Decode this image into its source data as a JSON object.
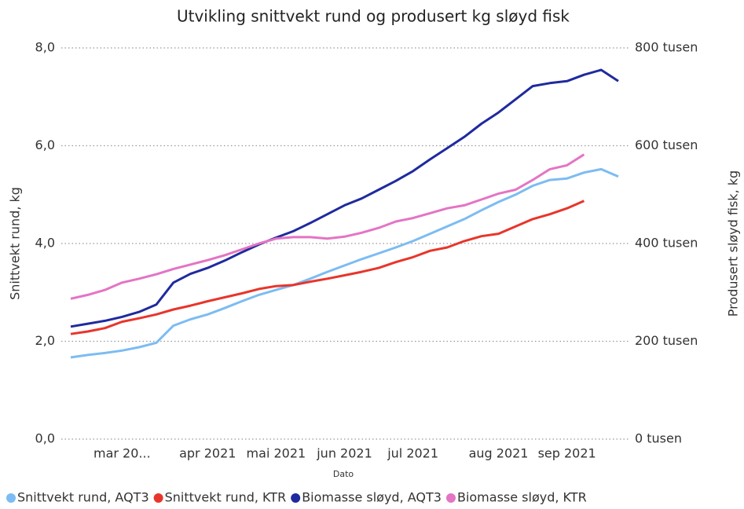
{
  "chart_data": {
    "type": "line",
    "title": "Utvikling snittvekt rund og produsert kg sløyd fisk",
    "x_label": "Dato",
    "y_label": "Snittvekt rund, kg",
    "y2_label": "Produsert sløyd fisk, kg",
    "categories": [
      null,
      null,
      null,
      "mar 20...",
      null,
      null,
      null,
      null,
      "apr 2021",
      null,
      null,
      null,
      "mai 2021",
      null,
      null,
      null,
      "jun 2021",
      null,
      null,
      null,
      "jul 2021",
      null,
      null,
      null,
      null,
      "aug 2021",
      null,
      null,
      null,
      "sep 2021",
      null,
      null,
      null
    ],
    "ylim": [
      0,
      8
    ],
    "yticks": [
      {
        "value": 0,
        "label": "0,0"
      },
      {
        "value": 2,
        "label": "2,0"
      },
      {
        "value": 4,
        "label": "4,0"
      },
      {
        "value": 6,
        "label": "6,0"
      },
      {
        "value": 8,
        "label": "8,0"
      }
    ],
    "y2lim": [
      0,
      800
    ],
    "y2ticks": [
      {
        "value": 0,
        "label": "0 tusen"
      },
      {
        "value": 200,
        "label": "200 tusen"
      },
      {
        "value": 400,
        "label": "400 tusen"
      },
      {
        "value": 600,
        "label": "600 tusen"
      },
      {
        "value": 800,
        "label": "800 tusen"
      }
    ],
    "grid": true,
    "legend": "bottom",
    "series": [
      {
        "name": "Snittvekt rund, AQT3",
        "color": "#7cbcf2",
        "values": [
          1.67,
          1.72,
          1.76,
          1.81,
          1.88,
          1.97,
          2.32,
          2.45,
          2.55,
          2.68,
          2.82,
          2.95,
          3.05,
          3.15,
          3.28,
          3.42,
          3.55,
          3.68,
          3.8,
          3.92,
          4.05,
          4.2,
          4.35,
          4.5,
          4.68,
          4.85,
          5.0,
          5.18,
          5.3,
          5.33,
          5.45,
          5.52,
          5.37
        ]
      },
      {
        "name": "Snittvekt rund, KTR",
        "color": "#e8352b",
        "values": [
          2.15,
          2.2,
          2.27,
          2.4,
          2.47,
          2.55,
          2.65,
          2.73,
          2.82,
          2.9,
          2.98,
          3.07,
          3.13,
          3.15,
          3.22,
          3.28,
          3.35,
          3.42,
          3.5,
          3.62,
          3.72,
          3.85,
          3.92,
          4.05,
          4.15,
          4.2,
          4.35,
          4.5,
          4.6,
          4.72,
          4.87,
          null,
          null
        ]
      },
      {
        "name": "Biomasse sløyd, AQT3",
        "color": "#1f2a9e",
        "axis": "y2",
        "values": [
          230,
          236,
          242,
          250,
          260,
          275,
          320,
          338,
          350,
          365,
          382,
          398,
          412,
          425,
          442,
          460,
          478,
          492,
          510,
          528,
          548,
          572,
          595,
          618,
          645,
          668,
          695,
          722,
          728,
          732,
          745,
          755,
          732
        ]
      },
      {
        "name": "Biomasse sløyd, KTR",
        "color": "#e474c4",
        "axis": "y2",
        "values": [
          287,
          295,
          305,
          320,
          328,
          337,
          348,
          357,
          366,
          376,
          388,
          400,
          410,
          413,
          413,
          410,
          414,
          422,
          432,
          445,
          452,
          462,
          472,
          478,
          490,
          502,
          510,
          530,
          552,
          560,
          582,
          null,
          null
        ]
      }
    ]
  }
}
